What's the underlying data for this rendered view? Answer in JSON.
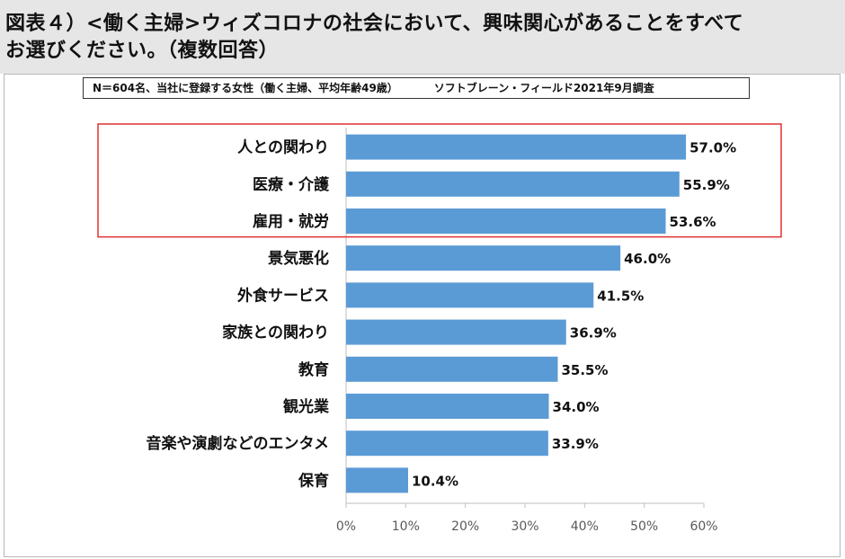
{
  "title": {
    "line1": "図表４）<働く主婦>ウィズコロナの社会において、興味関心があることをすべて",
    "line2": "お選びください。（複数回答）"
  },
  "note": {
    "sample": "N＝604名、当社に登録する女性（働く主婦、平均年齢49歳）",
    "source": "ソフトブレーン・フィールド2021年9月調査"
  },
  "colors": {
    "bar": "#5b9bd5",
    "highlight_border": "#e03030",
    "axis": "#bfbfbf",
    "tick_text": "#595959"
  },
  "chart_data": {
    "type": "bar",
    "orientation": "horizontal",
    "categories": [
      "人との関わり",
      "医療・介護",
      "雇用・就労",
      "景気悪化",
      "外食サービス",
      "家族との関わり",
      "教育",
      "観光業",
      "音楽や演劇などのエンタメ",
      "保育"
    ],
    "values": [
      57.0,
      55.9,
      53.6,
      46.0,
      41.5,
      36.9,
      35.5,
      34.0,
      33.9,
      10.4
    ],
    "value_labels": [
      "57.0%",
      "55.9%",
      "53.6%",
      "46.0%",
      "41.5%",
      "36.9%",
      "35.5%",
      "34.0%",
      "33.9%",
      "10.4%"
    ],
    "xlim": [
      0,
      60
    ],
    "xticks": [
      "0%",
      "10%",
      "20%",
      "30%",
      "40%",
      "50%",
      "60%"
    ],
    "highlighted_categories": [
      "人との関わり",
      "医療・介護",
      "雇用・就労"
    ]
  }
}
